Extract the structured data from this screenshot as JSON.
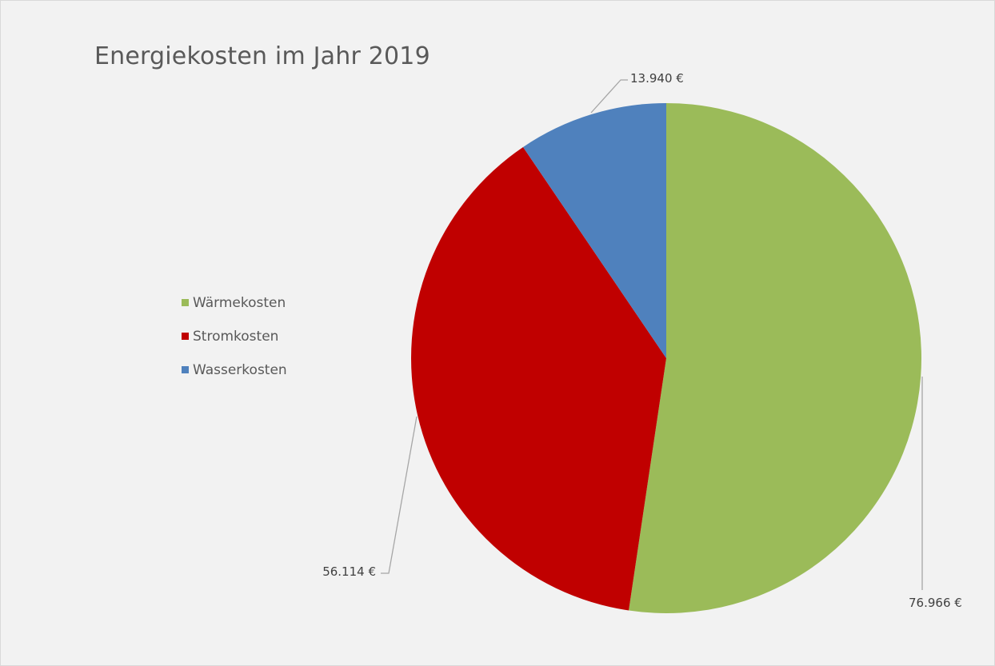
{
  "chart_data": {
    "type": "pie",
    "title": "Energiekosten im Jahr 2019",
    "categories": [
      "Wärmekosten",
      "Stromkosten",
      "Wasserkosten"
    ],
    "values": [
      76966,
      56114,
      13940
    ],
    "labels": [
      "76.966 €",
      "56.114 €",
      "13.940 €"
    ],
    "colors": [
      "#9bbb59",
      "#c00000",
      "#4f81bd"
    ],
    "legend_position": "left",
    "start_angle": "12 o'clock, clockwise"
  }
}
